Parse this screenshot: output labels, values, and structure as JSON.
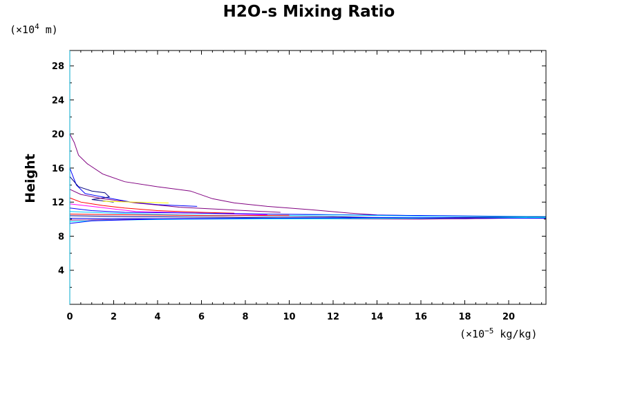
{
  "chart_data": {
    "type": "line",
    "title": "H2O-s Mixing Ratio",
    "xlabel": "",
    "ylabel": "Height",
    "x_unit": {
      "prefix": "(×10",
      "exp": "−5",
      "suffix": " kg/kg)"
    },
    "y_unit": {
      "prefix": "(×10",
      "exp": "4",
      "suffix": " m)"
    },
    "xlim": [
      0,
      21.7
    ],
    "ylim": [
      0,
      29.8
    ],
    "x_ticks": [
      0,
      2,
      4,
      6,
      8,
      10,
      12,
      14,
      16,
      18,
      20
    ],
    "x_tick_labels": [
      "0",
      "2",
      "4",
      "6",
      "8",
      "10",
      "12",
      "14",
      "16",
      "18",
      "20"
    ],
    "x_minor_step": 0.5,
    "y_ticks": [
      4,
      8,
      12,
      16,
      20,
      24,
      28
    ],
    "y_tick_labels": [
      "4",
      "8",
      "12",
      "16",
      "20",
      "24",
      "28"
    ],
    "y_minor_step": 2,
    "grid": false,
    "series": [
      {
        "color": "#800080",
        "points": [
          [
            0,
            20
          ],
          [
            0.2,
            19
          ],
          [
            0.4,
            17.5
          ],
          [
            0.8,
            16.5
          ],
          [
            1.5,
            15.3
          ],
          [
            2.5,
            14.4
          ],
          [
            4,
            13.8
          ],
          [
            5.5,
            13.3
          ],
          [
            6.5,
            12.4
          ],
          [
            7.5,
            11.9
          ],
          [
            9,
            11.5
          ],
          [
            11,
            11.1
          ],
          [
            12.8,
            10.7
          ],
          [
            14,
            10.5
          ],
          [
            17,
            10.35
          ],
          [
            21.7,
            10.2
          ]
        ]
      },
      {
        "color": "#0000ff",
        "points": [
          [
            0,
            16
          ],
          [
            0.3,
            14
          ],
          [
            0.7,
            13
          ],
          [
            1.5,
            12.6
          ],
          [
            2.8,
            12
          ],
          [
            4,
            11.7
          ],
          [
            5.8,
            11.5
          ]
        ]
      },
      {
        "color": "#000080",
        "points": [
          [
            0,
            15
          ],
          [
            0.4,
            13.8
          ],
          [
            1,
            13.3
          ],
          [
            1.6,
            13.1
          ],
          [
            1.8,
            12.6
          ],
          [
            1,
            12.3
          ],
          [
            2,
            12
          ]
        ]
      },
      {
        "color": "#800080",
        "points": [
          [
            0,
            13.5
          ],
          [
            0.5,
            12.9
          ],
          [
            1.5,
            12.4
          ],
          [
            3,
            11.9
          ],
          [
            5,
            11.4
          ],
          [
            8,
            11
          ],
          [
            9.6,
            10.8
          ]
        ]
      },
      {
        "color": "#ff0000",
        "points": [
          [
            0,
            12.5
          ],
          [
            0.5,
            12
          ],
          [
            1.5,
            11.6
          ],
          [
            2.5,
            11.3
          ],
          [
            4,
            11
          ],
          [
            6,
            10.8
          ],
          [
            7.5,
            10.7
          ]
        ]
      },
      {
        "color": "#ff00ff",
        "points": [
          [
            0,
            11.8
          ],
          [
            1,
            11.5
          ],
          [
            2,
            11.2
          ],
          [
            3,
            10.9
          ],
          [
            6,
            10.7
          ],
          [
            9,
            10.5
          ]
        ]
      },
      {
        "color": "#0000ff",
        "points": [
          [
            0,
            11.3
          ],
          [
            1,
            11
          ],
          [
            2.5,
            10.8
          ],
          [
            6,
            10.7
          ],
          [
            9,
            10.6
          ],
          [
            13,
            10.5
          ],
          [
            17,
            10.4
          ],
          [
            21.7,
            10.3
          ]
        ]
      },
      {
        "color": "#00c8ff",
        "points": [
          [
            0,
            10.9
          ],
          [
            2,
            10.7
          ],
          [
            5,
            10.5
          ],
          [
            9,
            10.4
          ],
          [
            12,
            10.5
          ],
          [
            16,
            10.35
          ],
          [
            21.7,
            10.3
          ]
        ]
      },
      {
        "color": "#000080",
        "points": [
          [
            0,
            10.4
          ],
          [
            3,
            10.3
          ],
          [
            8,
            10.2
          ],
          [
            12,
            10.3
          ],
          [
            15,
            10.15
          ],
          [
            21.7,
            10.25
          ]
        ]
      },
      {
        "color": "#0000ff",
        "points": [
          [
            0,
            10.1
          ],
          [
            4,
            10.05
          ],
          [
            8,
            10.1
          ],
          [
            13,
            10.1
          ],
          [
            18,
            10.05
          ],
          [
            21.7,
            10.2
          ]
        ]
      },
      {
        "color": "#800080",
        "points": [
          [
            0,
            9.9
          ],
          [
            4,
            10
          ],
          [
            10,
            10.05
          ],
          [
            16,
            10
          ],
          [
            21.7,
            10.15
          ]
        ]
      },
      {
        "color": "#00ffff",
        "points": [
          [
            0,
            9.7
          ],
          [
            2,
            9.9
          ],
          [
            6,
            10
          ],
          [
            12,
            10.05
          ],
          [
            21.7,
            10.2
          ]
        ]
      },
      {
        "color": "#ffff00",
        "points": [
          [
            1.5,
            12.1
          ],
          [
            3,
            12
          ],
          [
            4.5,
            11.9
          ]
        ]
      },
      {
        "color": "#ff0000",
        "points": [
          [
            0,
            10.6
          ],
          [
            3,
            10.5
          ],
          [
            7,
            10.4
          ],
          [
            10,
            10.45
          ]
        ]
      },
      {
        "color": "#0000ff",
        "points": [
          [
            0,
            9.5
          ],
          [
            1,
            9.8
          ],
          [
            4,
            10
          ],
          [
            9,
            10.1
          ],
          [
            14,
            10.2
          ],
          [
            21.7,
            10.1
          ]
        ]
      }
    ]
  }
}
